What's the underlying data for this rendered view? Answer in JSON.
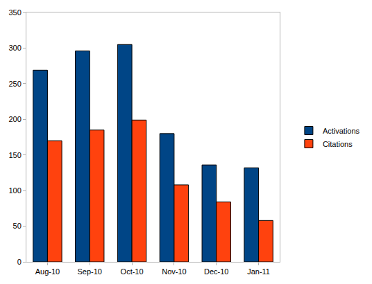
{
  "chart_data": {
    "type": "bar",
    "categories": [
      "Aug-10",
      "Sep-10",
      "Oct-10",
      "Nov-10",
      "Dec-10",
      "Jan-11"
    ],
    "series": [
      {
        "name": "Activations",
        "color": "#004586",
        "values": [
          269,
          296,
          305,
          180,
          136,
          132
        ]
      },
      {
        "name": "Citations",
        "color": "#ff420e",
        "values": [
          170,
          185,
          199,
          108,
          84,
          58
        ]
      }
    ],
    "ylim": [
      0,
      350
    ],
    "yticks": [
      0,
      50,
      100,
      150,
      200,
      250,
      300,
      350
    ],
    "grid": false,
    "legend": "right"
  }
}
